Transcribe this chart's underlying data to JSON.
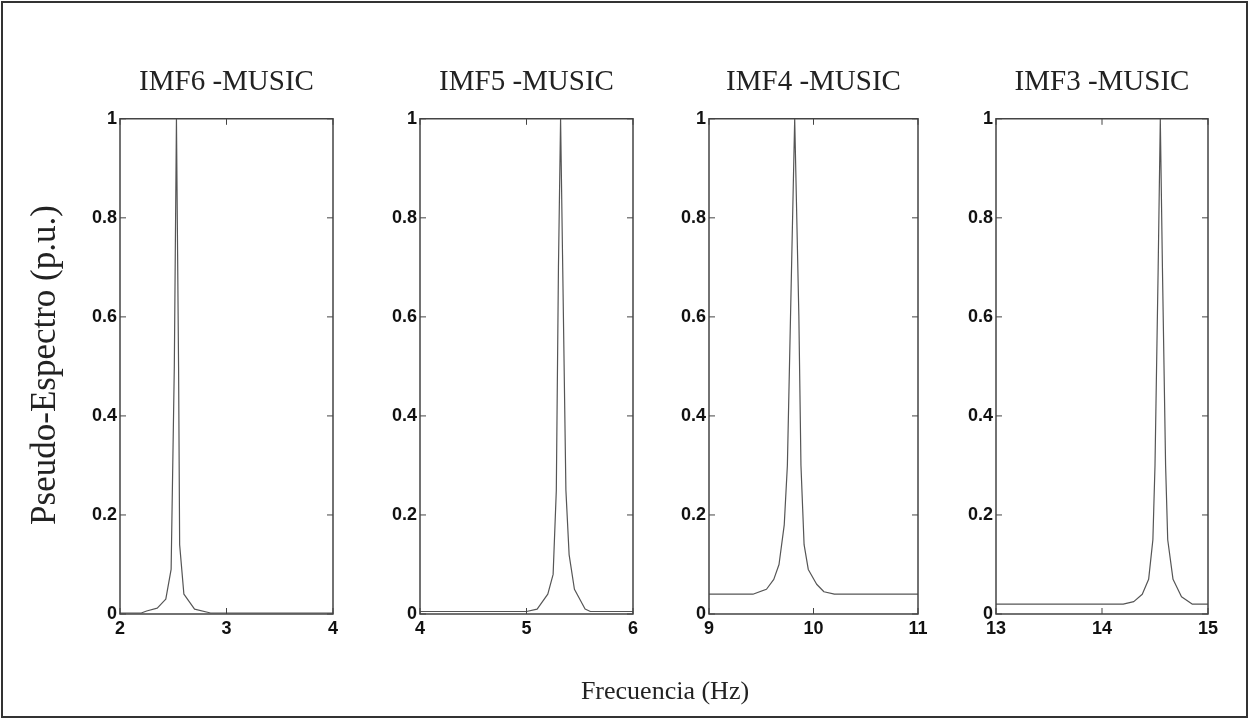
{
  "chart_data": [
    {
      "type": "line",
      "title": "IMF6 -MUSIC",
      "ylabel": "Pseudo-Espectro (p.u.)",
      "xlim": [
        2,
        4
      ],
      "xticks": [
        2,
        3,
        4
      ],
      "ylim": [
        0,
        1
      ],
      "yticks": [
        0,
        0.2,
        0.4,
        0.6,
        0.8,
        1
      ],
      "grid": false,
      "legend": false,
      "marker": "none",
      "line_style": "solid",
      "series": [
        {
          "color": "#555555",
          "x": [
            2,
            2.2,
            2.25,
            2.35,
            2.43,
            2.48,
            2.51,
            2.53,
            2.55,
            2.56,
            2.6,
            2.7,
            2.85,
            4
          ],
          "values": [
            0.002,
            0.002,
            0.006,
            0.012,
            0.03,
            0.09,
            0.5,
            1,
            0.5,
            0.14,
            0.04,
            0.01,
            0.002,
            0.002
          ]
        }
      ]
    },
    {
      "type": "line",
      "title": "IMF5 -MUSIC",
      "xlabel": "Frecuencia (Hz)",
      "xlim": [
        4,
        6
      ],
      "xticks": [
        4,
        5,
        6
      ],
      "ylim": [
        0,
        1
      ],
      "yticks": [
        0,
        0.2,
        0.4,
        0.6,
        0.8,
        1
      ],
      "grid": false,
      "legend": false,
      "marker": "none",
      "line_style": "solid",
      "series": [
        {
          "color": "#555555",
          "x": [
            4,
            5,
            5.1,
            5.2,
            5.25,
            5.28,
            5.3,
            5.32,
            5.34,
            5.37,
            5.4,
            5.45,
            5.55,
            5.6,
            6
          ],
          "values": [
            0.005,
            0.005,
            0.01,
            0.04,
            0.08,
            0.25,
            0.7,
            1,
            0.7,
            0.25,
            0.12,
            0.05,
            0.01,
            0.005,
            0.005
          ]
        }
      ]
    },
    {
      "type": "line",
      "title": "IMF4 -MUSIC",
      "xlim": [
        9,
        11
      ],
      "xticks": [
        9,
        10,
        11
      ],
      "ylim": [
        0,
        1
      ],
      "yticks": [
        0,
        0.2,
        0.4,
        0.6,
        0.8,
        1
      ],
      "grid": false,
      "legend": false,
      "marker": "none",
      "line_style": "solid",
      "series": [
        {
          "color": "#555555",
          "x": [
            9,
            9.42,
            9.55,
            9.62,
            9.67,
            9.72,
            9.75,
            9.78,
            9.82,
            9.86,
            9.88,
            9.91,
            9.95,
            10.03,
            10.1,
            10.2,
            11
          ],
          "values": [
            0.04,
            0.04,
            0.05,
            0.07,
            0.1,
            0.18,
            0.3,
            0.6,
            1,
            0.6,
            0.3,
            0.14,
            0.09,
            0.06,
            0.045,
            0.04,
            0.04
          ]
        }
      ]
    },
    {
      "type": "line",
      "title": "IMF3 -MUSIC",
      "xlim": [
        13,
        15
      ],
      "xticks": [
        13,
        14,
        15
      ],
      "ylim": [
        0,
        1
      ],
      "yticks": [
        0,
        0.2,
        0.4,
        0.6,
        0.8,
        1
      ],
      "grid": false,
      "legend": false,
      "marker": "none",
      "line_style": "solid",
      "series": [
        {
          "color": "#555555",
          "x": [
            13,
            14.2,
            14.3,
            14.38,
            14.44,
            14.48,
            14.5,
            14.53,
            14.55,
            14.57,
            14.6,
            14.62,
            14.67,
            14.75,
            14.85,
            15
          ],
          "values": [
            0.02,
            0.02,
            0.025,
            0.04,
            0.07,
            0.15,
            0.3,
            0.7,
            1,
            0.7,
            0.3,
            0.15,
            0.07,
            0.035,
            0.02,
            0.02
          ]
        }
      ]
    }
  ]
}
